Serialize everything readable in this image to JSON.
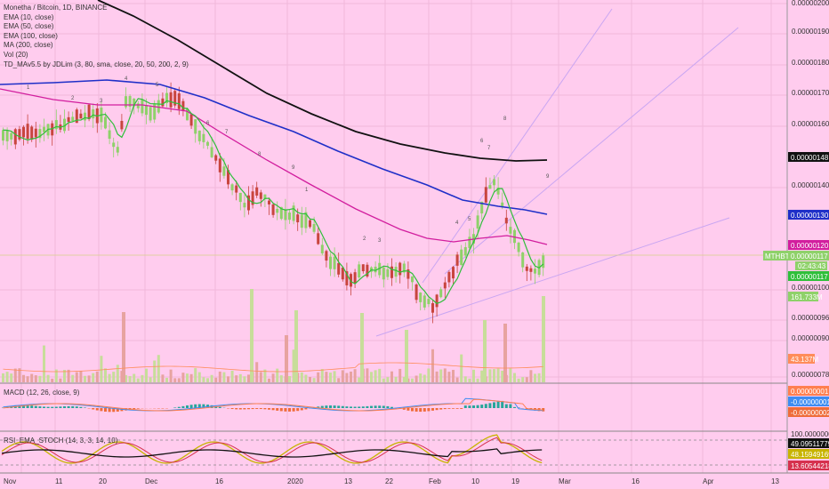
{
  "legend": {
    "symbol": "Monetha / Bitcoin, 1D, BINANCE",
    "ema10": "EMA (10, close)",
    "ema50": "EMA (50, close)",
    "ema100": "EMA (100, close)",
    "ma200": "MA (200, close)",
    "vol": "Vol (20)",
    "td": "TD_MAv5.5 by JDLim (3, 80, sma, close, 20, 50, 200, 2, 9)"
  },
  "macd_label": "MACD (12, 26, close, 9)",
  "rsi_label": "RSI_EMA_STOCH (14, 3, 3, 14, 10)",
  "price_ticks": [
    "0.00000200",
    "0.00000190",
    "0.00000180",
    "0.00000170",
    "0.00000160",
    "0.00000140",
    "0.00000100",
    "0.00000096",
    "0.00000090",
    "0.00000078"
  ],
  "price_badges": {
    "ma200": "0.00000148",
    "ema100": "0.00000130",
    "ema50": "0.00000120",
    "last": "0.00000117",
    "pair_tag": "MTHBTC",
    "timer": "02:43:43",
    "ema10": "0.00000117",
    "vol_volume": "161.733M",
    "vol_ma": "43.137M"
  },
  "macd_badges": [
    "0.00000001",
    "-0.00000001",
    "-0.00000002"
  ],
  "rsi_badges": [
    "100.00000000",
    "49.09511779",
    "48.15949169",
    "13.60544218"
  ],
  "colors": {
    "background": "#ffccee",
    "candle_up": "#8fd16a",
    "candle_down": "#c8453e",
    "ema10": "#2fbf3a",
    "ema50": "#d21e9e",
    "ema100": "#1f2fc8",
    "ma200": "#111111",
    "trendline": "#c9a6f2",
    "vol_up": "#c7dd9a",
    "vol_down": "#e7a3a0",
    "vol_ma": "#ff8c5a",
    "macd_line": "#3d8cf2",
    "signal_line": "#ff7f50",
    "hist_up": "#26a69a",
    "hist_down": "#ef6c3a",
    "rsi_line": "#111111",
    "stoch_k": "#c8b400",
    "stoch_d": "#d6314e"
  },
  "chart_data": {
    "type": "candlestick",
    "title": "Monetha / Bitcoin, 1D, BINANCE",
    "x_ticks": [
      "Nov",
      "11",
      "20",
      "Dec",
      "16",
      "2020",
      "13",
      "22",
      "Feb",
      "10",
      "19",
      "Mar",
      "16",
      "Apr",
      "13"
    ],
    "y_range": [
      7.4e-07,
      2e-06
    ],
    "last_price": 1.17e-06,
    "series_meta": {
      "ema10_last": 1.17e-06,
      "ema50_last": 1.2e-06,
      "ema100_last": 1.3e-06,
      "ma200_last": 1.48e-06
    },
    "volume_last": "161.733M",
    "volume_ma_last": "43.137M",
    "macd_last": [
      1e-08,
      -1e-08,
      -2e-08
    ],
    "rsi_last": [
      49.09511779,
      48.15949169,
      13.60544218
    ]
  }
}
